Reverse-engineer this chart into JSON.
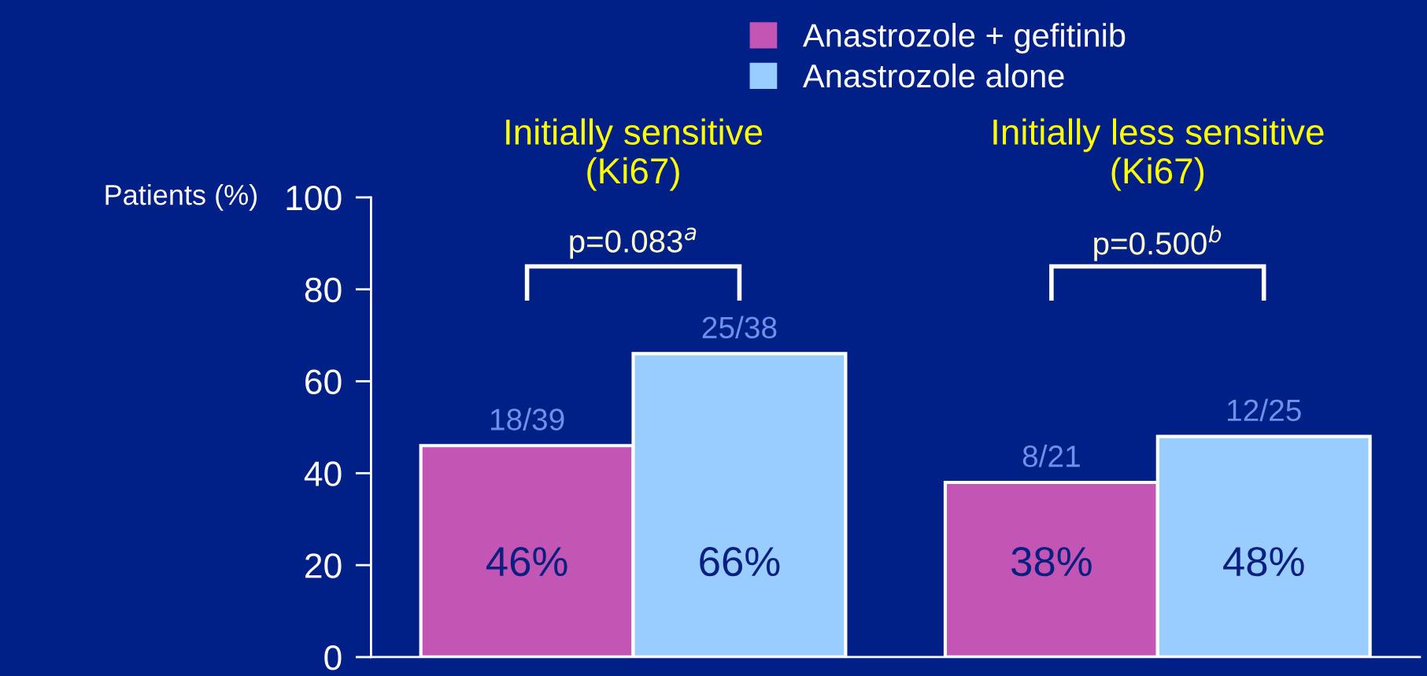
{
  "chart_data": {
    "type": "bar",
    "categories": [
      "Initially sensitive\n(Ki67)",
      "Initially less sensitive\n(Ki67)"
    ],
    "ylabel": "Patients (%)",
    "series": [
      {
        "name": "Anastrozole + gefitinib",
        "color": "#c355b5",
        "values": [
          46,
          38
        ],
        "value_labels": [
          "46%",
          "38%"
        ]
      },
      {
        "name": "Anastrozole alone",
        "color": "#99ccff",
        "values": [
          66,
          48
        ],
        "value_labels": [
          "66%",
          "48%"
        ]
      }
    ],
    "annotations": [
      "p=0.083$^{a}$",
      "p=0.500$^{b}$",
      "18/39",
      "8/21",
      "25/38",
      "12/25"
    ],
    "ylim": [
      0,
      100
    ],
    "yticks": [
      0,
      20,
      40,
      60,
      80,
      100
    ],
    "grid": false,
    "legend": "top right"
  }
}
